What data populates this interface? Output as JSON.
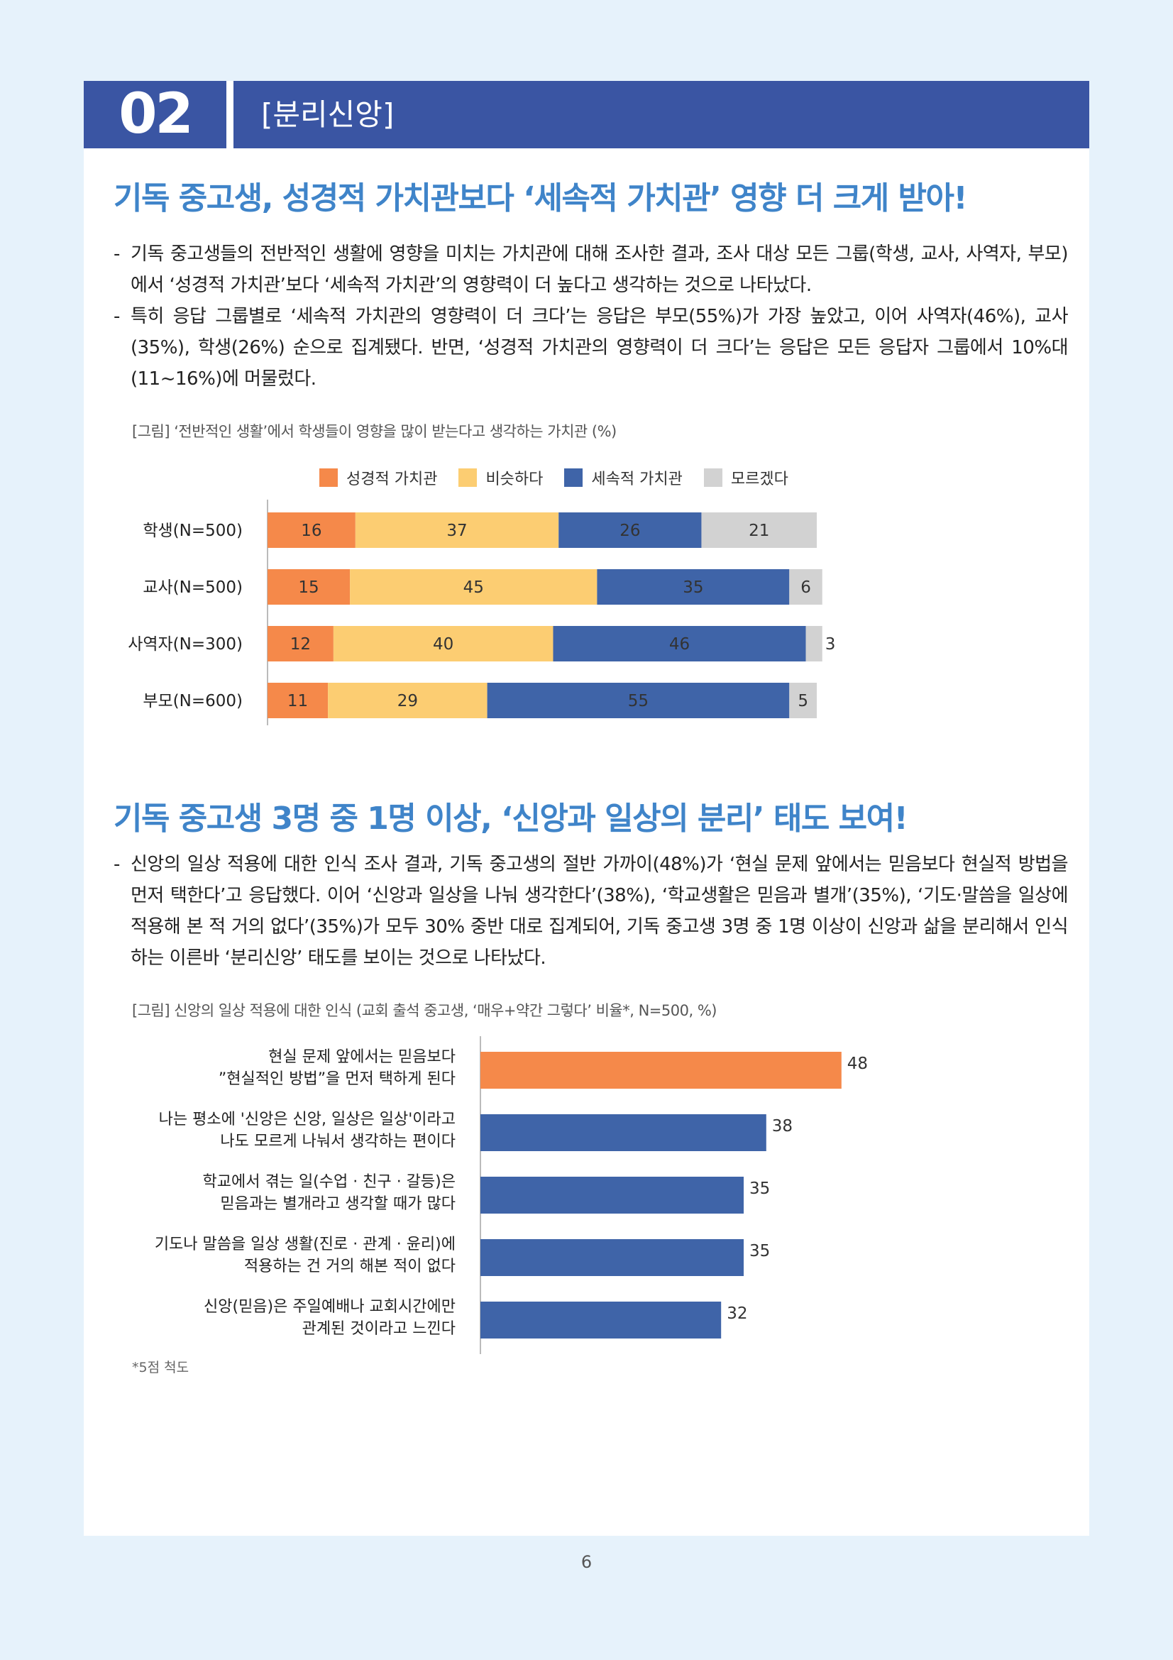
{
  "header": {
    "number": "02",
    "title": "[분리신앙]"
  },
  "section1": {
    "headline": "기독 중고생, 성경적 가치관보다 ‘세속적 가치관’ 영향 더 크게 받아!",
    "bullets": [
      "기독 중고생들의 전반적인 생활에 영향을 미치는 가치관에 대해 조사한 결과, 조사 대상 모든 그룹(학생, 교사, 사역자, 부모)에서 ‘성경적 가치관’보다 ‘세속적 가치관’의 영향력이 더 높다고 생각하는 것으로 나타났다.",
      "특히 응답 그룹별로 ‘세속적 가치관의 영향력이 더 크다’는 응답은 부모(55%)가 가장 높았고, 이어 사역자(46%), 교사(35%), 학생(26%) 순으로 집계됐다. 반면, ‘성경적 가치관의 영향력이 더 크다’는 응답은 모든 응답자 그룹에서 10%대(11~16%)에 머물렀다."
    ],
    "caption": "[그림] ‘전반적인 생활’에서 학생들이 영향을 많이 받는다고 생각하는 가치관 (%)"
  },
  "section2": {
    "headline": "기독 중고생 3명 중 1명 이상, ‘신앙과 일상의 분리’ 태도 보여!",
    "bullets": [
      "신앙의 일상 적용에 대한 인식 조사 결과, 기독 중고생의 절반 가까이(48%)가 ‘현실 문제 앞에서는 믿음보다 현실적 방법을 먼저 택한다’고 응답했다. 이어 ‘신앙과 일상을 나눠 생각한다’(38%), ‘학교생활은 믿음과 별개’(35%), ‘기도·말씀을 일상에 적용해 본 적 거의 없다’(35%)가 모두 30% 중반 대로 집계되어, 기독 중고생 3명 중 1명 이상이 신앙과 삶을 분리해서 인식하는 이른바 ‘분리신앙’ 태도를 보이는 것으로 나타났다."
    ],
    "caption": "[그림] 신앙의 일상 적용에 대한 인식 (교회 출석 중고생, ‘매우+약간 그렇다’ 비율*, N=500, %)",
    "footnote": "*5점 척도"
  },
  "page_number": "6",
  "chart_data": [
    {
      "type": "bar",
      "orientation": "horizontal",
      "stacked": true,
      "title": "",
      "categories": [
        "학생(N=500)",
        "교사(N=500)",
        "사역자(N=300)",
        "부모(N=600)"
      ],
      "series": [
        {
          "name": "성경적 가치관",
          "color": "#f5894a",
          "values": [
            16,
            15,
            12,
            11
          ]
        },
        {
          "name": "비슷하다",
          "color": "#fccd72",
          "values": [
            37,
            45,
            40,
            29
          ]
        },
        {
          "name": "세속적 가치관",
          "color": "#3f64a8",
          "values": [
            26,
            35,
            46,
            55
          ]
        },
        {
          "name": "모르겠다",
          "color": "#d2d2d2",
          "values": [
            21,
            6,
            3,
            5
          ]
        }
      ],
      "legend": "top",
      "grid": false
    },
    {
      "type": "bar",
      "orientation": "horizontal",
      "title": "",
      "categories": [
        [
          "현실 문제 앞에서는 믿음보다",
          "”현실적인 방법”을 먼저 택하게 된다"
        ],
        [
          "나는 평소에 '신앙은 신앙, 일상은 일상'이라고",
          "나도 모르게 나눠서 생각하는 편이다"
        ],
        [
          "학교에서 겪는 일(수업 · 친구 · 갈등)은",
          "믿음과는 별개라고 생각할 때가 많다"
        ],
        [
          "기도나 말씀을 일상 생활(진로 · 관계 · 윤리)에",
          "적용하는 건 거의 해본 적이 없다"
        ],
        [
          "신앙(믿음)은 주일예배나 교회시간에만",
          "관계된 것이라고 느낀다"
        ]
      ],
      "values": [
        48,
        38,
        35,
        35,
        32
      ],
      "colors": [
        "#f5894a",
        "#3f64a8",
        "#3f64a8",
        "#3f64a8",
        "#3f64a8"
      ],
      "xlim": [
        0,
        100
      ],
      "grid": false
    }
  ]
}
